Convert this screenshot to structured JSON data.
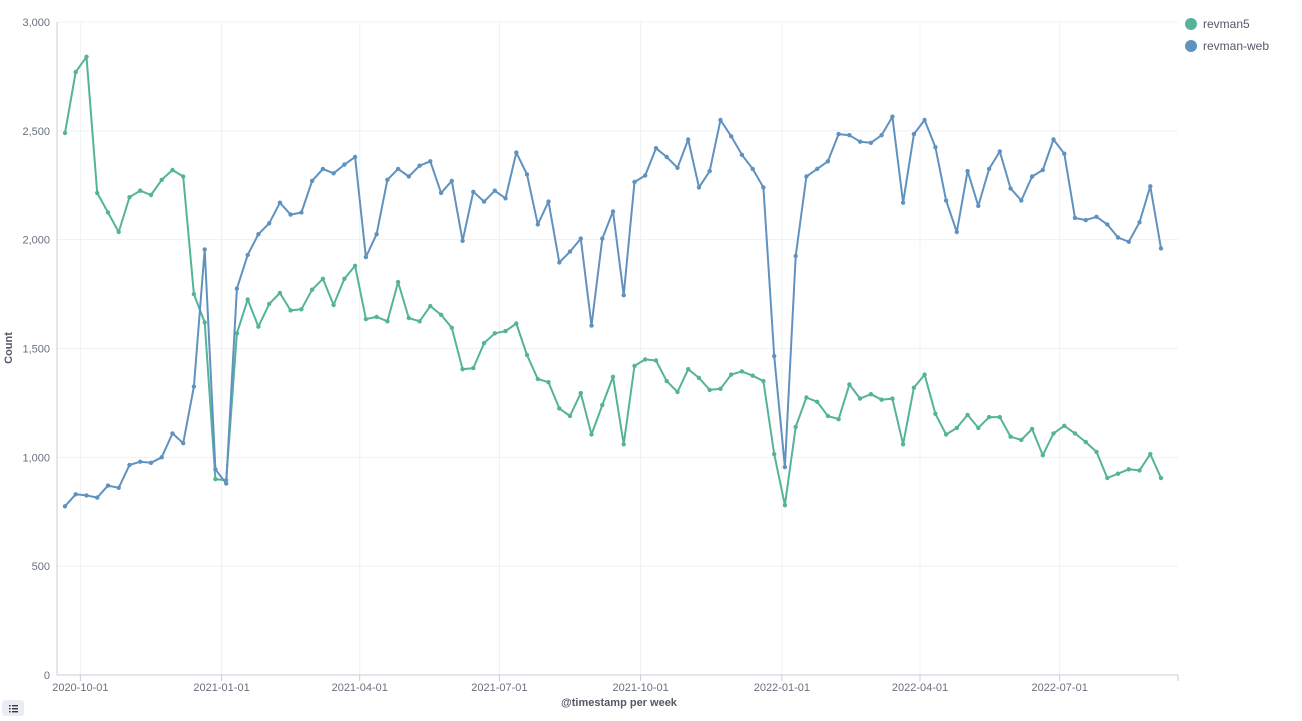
{
  "chart_data": {
    "type": "line",
    "xlabel": "@timestamp per week",
    "ylabel": "Count",
    "ylim": [
      0,
      3000
    ],
    "yticks": [
      0,
      500,
      1000,
      1500,
      2000,
      2500,
      3000
    ],
    "ytick_labels": [
      "0",
      "500",
      "1,000",
      "1,500",
      "2,000",
      "2,500",
      "3,000"
    ],
    "x_start": "2020-09-21",
    "x_step_days": 7,
    "xticks": [
      "2020-10-01",
      "2021-01-01",
      "2021-04-01",
      "2021-07-01",
      "2021-10-01",
      "2022-01-01",
      "2022-04-01",
      "2022-07-01"
    ],
    "grid": true,
    "legend_position": "top-right",
    "series": [
      {
        "name": "revman5",
        "color": "#54b399",
        "values": [
          2490,
          2770,
          2840,
          2215,
          2125,
          2035,
          2195,
          2225,
          2205,
          2275,
          2320,
          2290,
          1750,
          1620,
          900,
          895,
          1570,
          1725,
          1600,
          1705,
          1755,
          1675,
          1680,
          1770,
          1820,
          1700,
          1820,
          1880,
          1635,
          1645,
          1625,
          1805,
          1640,
          1625,
          1695,
          1655,
          1595,
          1405,
          1410,
          1525,
          1570,
          1580,
          1615,
          1470,
          1360,
          1345,
          1225,
          1190,
          1295,
          1105,
          1240,
          1370,
          1060,
          1420,
          1450,
          1445,
          1350,
          1300,
          1405,
          1365,
          1310,
          1315,
          1380,
          1395,
          1375,
          1350,
          1015,
          780,
          1140,
          1275,
          1255,
          1190,
          1175,
          1335,
          1270,
          1290,
          1265,
          1270,
          1060,
          1320,
          1380,
          1200,
          1105,
          1135,
          1195,
          1135,
          1185,
          1185,
          1095,
          1080,
          1130,
          1010,
          1110,
          1145,
          1110,
          1070,
          1025,
          905,
          925,
          945,
          940,
          1015,
          905
        ]
      },
      {
        "name": "revman-web",
        "color": "#6092c0",
        "values": [
          775,
          830,
          825,
          815,
          870,
          860,
          965,
          980,
          975,
          1000,
          1110,
          1065,
          1325,
          1955,
          945,
          880,
          1775,
          1930,
          2025,
          2075,
          2170,
          2115,
          2125,
          2270,
          2325,
          2305,
          2345,
          2380,
          1920,
          2025,
          2275,
          2325,
          2290,
          2340,
          2360,
          2215,
          2270,
          1995,
          2220,
          2175,
          2225,
          2190,
          2400,
          2300,
          2070,
          2175,
          1895,
          1945,
          2005,
          1605,
          2005,
          2130,
          1745,
          2265,
          2295,
          2420,
          2380,
          2330,
          2460,
          2240,
          2315,
          2550,
          2475,
          2390,
          2325,
          2240,
          1465,
          955,
          1925,
          2290,
          2325,
          2360,
          2485,
          2480,
          2450,
          2445,
          2480,
          2565,
          2170,
          2485,
          2550,
          2425,
          2180,
          2035,
          2315,
          2155,
          2325,
          2405,
          2235,
          2180,
          2290,
          2320,
          2460,
          2395,
          2100,
          2090,
          2105,
          2070,
          2010,
          1990,
          2080,
          2245,
          1960
        ]
      }
    ]
  }
}
